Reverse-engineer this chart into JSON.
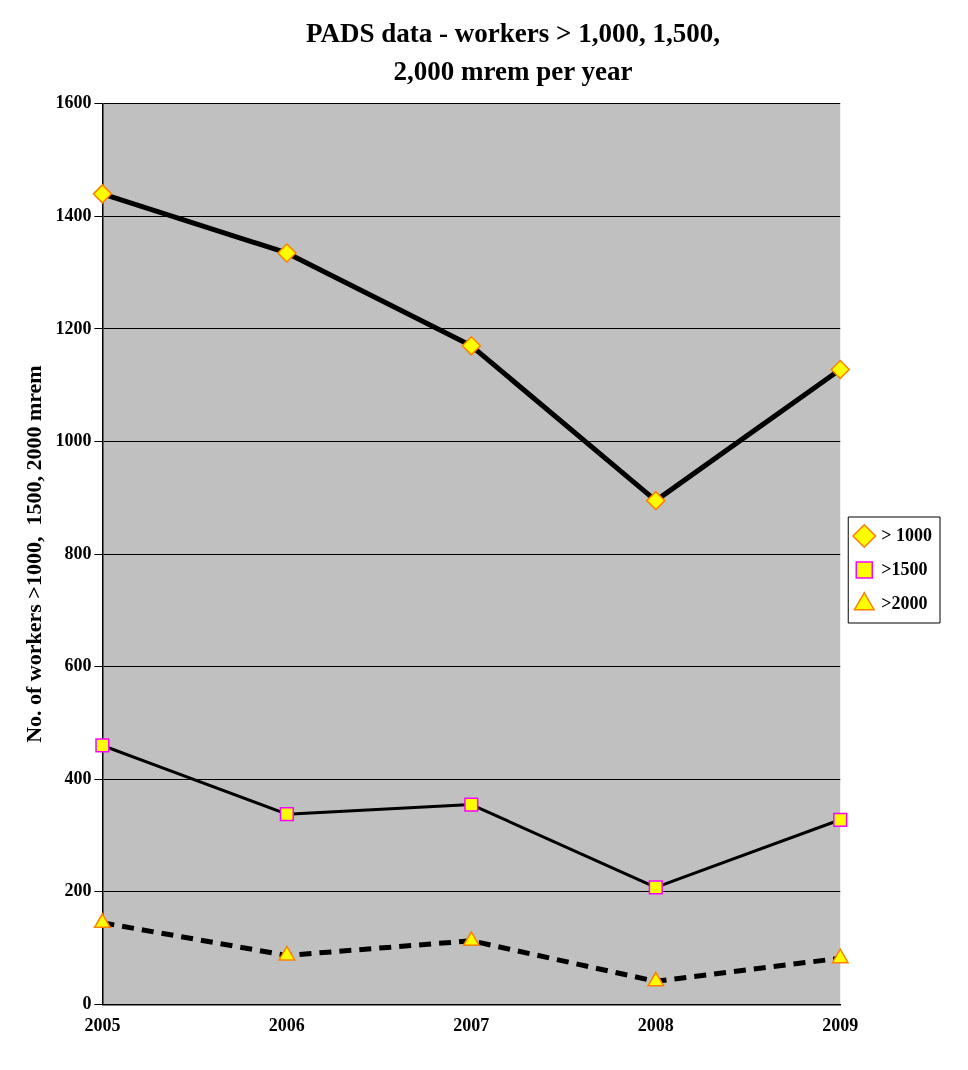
{
  "chart_data": {
    "type": "line",
    "title": "PADS data - workers > 1,000, 1,500, 2,000 mrem per year",
    "ylabel": "No. of workers >1000,  1500, 2000 mrem",
    "categories": [
      "2005",
      "2006",
      "2007",
      "2008",
      "2009"
    ],
    "series": [
      {
        "name": "> 1000",
        "color": "#000000",
        "values": [
          1440,
          1335,
          1170,
          895,
          1128
        ],
        "marker": "diamond",
        "line_style": "solid"
      },
      {
        "name": ">1500",
        "color": "#000000",
        "values": [
          460,
          338,
          355,
          208,
          328
        ],
        "marker": "square",
        "line_style": "solid"
      },
      {
        "name": ">2000",
        "color": "#000000",
        "values": [
          145,
          87,
          113,
          41,
          82
        ],
        "marker": "triangle",
        "line_style": "dashed"
      }
    ],
    "ylim": [
      0,
      1600
    ],
    "yticks": [
      0,
      200,
      400,
      600,
      800,
      1000,
      1200,
      1400,
      1600
    ],
    "grid": "y",
    "legend": "right"
  }
}
